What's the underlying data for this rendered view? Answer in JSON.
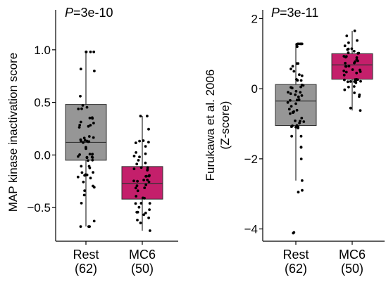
{
  "chart_data": [
    {
      "type": "box",
      "panel": "left",
      "annotation": {
        "p_label": "P",
        "p_value": "=3e-10"
      },
      "ylabel": "MAP kinase inactivation score",
      "ylim": [
        -0.82,
        1.38
      ],
      "yticks": [
        1.0,
        0.5,
        0.0,
        -0.5
      ],
      "ytick_labels": [
        "1.0",
        "0.5",
        "0.0",
        "−0.5"
      ],
      "grid": false,
      "legend": "none",
      "categories": [
        {
          "label": "Rest",
          "n_label": "(62)"
        },
        {
          "label": "MC6",
          "n_label": "(50)"
        }
      ],
      "boxes": [
        {
          "category": "Rest",
          "q1": -0.05,
          "median": 0.12,
          "q3": 0.48,
          "whisker_low": -0.68,
          "whisker_high": 0.98,
          "color": "#969696",
          "n": 62
        },
        {
          "category": "MC6",
          "q1": -0.42,
          "median": -0.27,
          "q3": -0.11,
          "whisker_low": -0.72,
          "whisker_high": 0.37,
          "color": "#c41f6b",
          "n": 50
        }
      ]
    },
    {
      "type": "box",
      "panel": "right",
      "annotation": {
        "p_label": "P",
        "p_value": "=3e-11"
      },
      "ylabel_lines": [
        "Furukawa et al. 2006",
        "(Z-score)"
      ],
      "ylim": [
        -4.35,
        2.25
      ],
      "yticks": [
        2,
        0,
        -2,
        -4
      ],
      "ytick_labels": [
        "2",
        "0",
        "−2",
        "−4"
      ],
      "grid": false,
      "legend": "none",
      "categories": [
        {
          "label": "Rest",
          "n_label": "(62)"
        },
        {
          "label": "MC6",
          "n_label": "(50)"
        }
      ],
      "boxes": [
        {
          "category": "Rest",
          "q1": -1.05,
          "median": -0.35,
          "q3": 0.12,
          "whisker_low": -2.62,
          "whisker_high": 1.28,
          "outliers": [
            -2.9,
            -2.95,
            -4.1,
            -4.12
          ],
          "color": "#969696",
          "n": 62
        },
        {
          "category": "MC6",
          "q1": 0.27,
          "median": 0.68,
          "q3": 1.0,
          "whisker_low": -0.62,
          "whisker_high": 1.65,
          "color": "#c41f6b",
          "n": 50
        }
      ]
    }
  ],
  "colors": {
    "rest": "#969696",
    "mc6": "#c41f6b",
    "axis": "#000000"
  }
}
